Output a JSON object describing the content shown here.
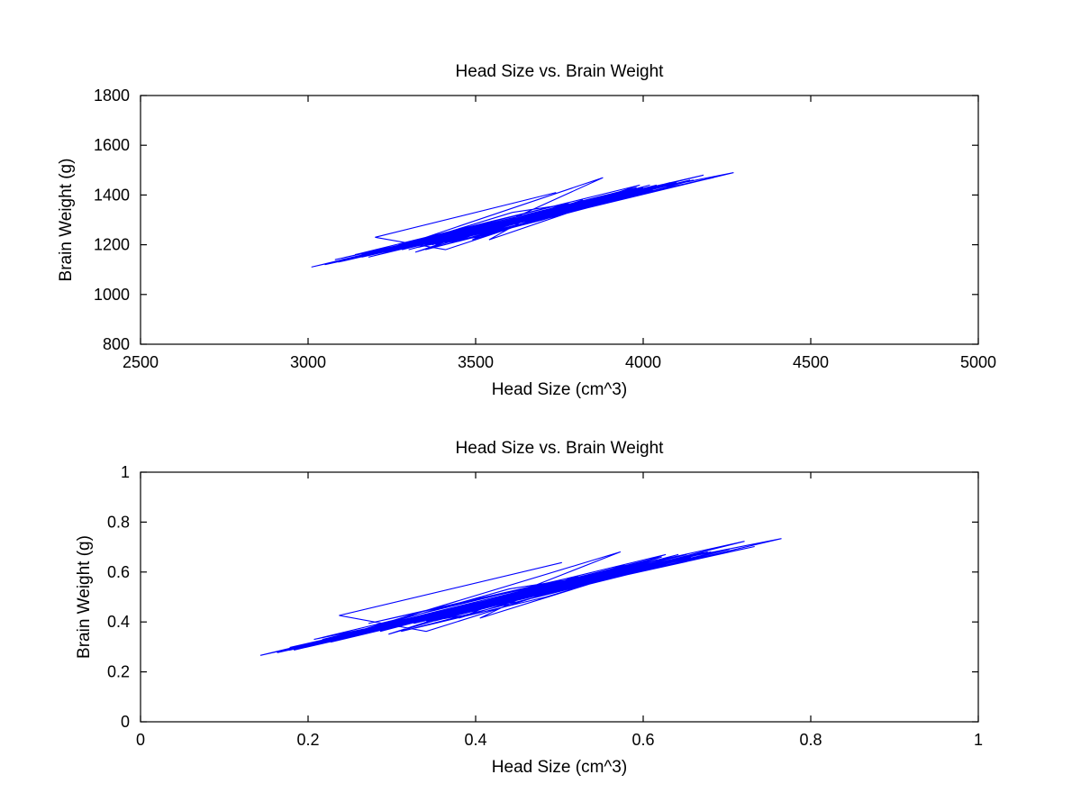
{
  "chart_data": [
    {
      "type": "line",
      "title": "Head Size vs. Brain Weight",
      "xlabel": "Head Size (cm^3)",
      "ylabel": "Brain Weight (g)",
      "xlim": [
        2500,
        5000
      ],
      "ylim": [
        800,
        1800
      ],
      "xticks": [
        2500,
        3000,
        3500,
        4000,
        4500,
        5000
      ],
      "yticks": [
        800,
        1000,
        1200,
        1400,
        1600,
        1800
      ],
      "xtick_labels": [
        "2500",
        "3000",
        "3500",
        "4000",
        "4500",
        "5000"
      ],
      "ytick_labels": [
        "800",
        "1000",
        "1200",
        "1400",
        "1600",
        "1800"
      ],
      "grid": false,
      "color": "#0000ff",
      "series": [
        {
          "x": [
            3740,
            3200,
            3410,
            3860,
            3610,
            3220,
            3880,
            3520,
            3660,
            3540,
            3910,
            3300,
            3780,
            3450,
            4030,
            3350,
            3700,
            3850,
            3140,
            3990,
            3490,
            3600,
            3780,
            3270,
            3930,
            3640,
            3080,
            4150,
            3500,
            3420,
            3820,
            3700,
            3890,
            3320,
            3560,
            4210,
            3160,
            3750,
            3460,
            3990,
            3090,
            3870,
            3380,
            3680,
            3980,
            3240,
            3590,
            3800,
            3480,
            4090,
            3310,
            3720,
            3950,
            3160,
            3560,
            3430,
            4070,
            3660,
            3250,
            3850,
            3540,
            4050,
            3330,
            3780,
            3470,
            3940,
            3120,
            3640,
            3900,
            3390,
            3810,
            3210,
            3700,
            4020,
            3570,
            3300,
            3880,
            3680,
            3050,
            3460,
            3920,
            4180,
            3630,
            3360,
            3750,
            3540,
            4100,
            3220,
            3690,
            3820,
            3410,
            3970,
            3600,
            3190,
            3780,
            4270,
            3500,
            3330,
            3860,
            3670,
            3010,
            3940,
            3580,
            3440,
            3760,
            4040,
            3260,
            3640,
            3820,
            3510,
            3910,
            3400,
            3720,
            3290,
            3990,
            3610,
            3180,
            3850,
            3560,
            3430,
            4140,
            3700,
            3340,
            3880,
            3530,
            3080,
            3790,
            3670,
            3960,
            3420,
            3600,
            3280,
            3840,
            3750,
            3480,
            4080,
            3360,
            3900,
            3620,
            3120,
            3780,
            3530,
            3980,
            3310,
            3710,
            3470,
            3880,
            3230,
            3650,
            3800,
            3400,
            3960,
            3570,
            3150,
            3740,
            3510,
            4060,
            3380,
            3690,
            3280,
            3830,
            3600,
            3450,
            3920,
            3210,
            3760,
            3550,
            4000,
            3350,
            3690,
            3880,
            3470,
            3100,
            3810,
            3640,
            3300,
            3940,
            3530,
            3760,
            3400,
            3850,
            3620,
            3190,
            4030,
            3490,
            3720,
            3270,
            3880,
            3580,
            3430,
            3810,
            3660,
            3340,
            3990,
            3500,
            3750,
            3210,
            3640,
            3910,
            3470,
            3780,
            3390,
            3590,
            3860,
            3250,
            3700,
            3530,
            4020,
            3370,
            3690,
            3420,
            3830,
            3610,
            3290,
            3750,
            3480,
            3920,
            3560,
            3330,
            3800,
            3650,
            3190,
            3740,
            3500,
            3890,
            3440,
            3670,
            3310,
            3820,
            3590,
            3720,
            3410,
            3960,
            3530,
            3270
          ],
          "y": [
            1410,
            1230,
            1180,
            1380,
            1330,
            1170,
            1470,
            1250,
            1310,
            1220,
            1390,
            1190,
            1350,
            1240,
            1420,
            1180,
            1300,
            1360,
            1160,
            1440,
            1220,
            1290,
            1370,
            1200,
            1410,
            1310,
            1140,
            1460,
            1230,
            1210,
            1380,
            1320,
            1400,
            1170,
            1280,
            1470,
            1150,
            1340,
            1230,
            1410,
            1130,
            1390,
            1200,
            1310,
            1430,
            1170,
            1280,
            1370,
            1240,
            1450,
            1190,
            1320,
            1420,
            1160,
            1270,
            1210,
            1440,
            1300,
            1180,
            1380,
            1260,
            1430,
            1200,
            1350,
            1230,
            1410,
            1140,
            1300,
            1390,
            1210,
            1360,
            1170,
            1330,
            1440,
            1280,
            1180,
            1390,
            1310,
            1120,
            1240,
            1400,
            1480,
            1300,
            1200,
            1350,
            1260,
            1450,
            1170,
            1320,
            1370,
            1210,
            1420,
            1290,
            1160,
            1360,
            1490,
            1240,
            1190,
            1380,
            1310,
            1110,
            1410,
            1270,
            1220,
            1340,
            1440,
            1180,
            1300,
            1370,
            1250,
            1400,
            1210,
            1330,
            1190,
            1420,
            1290,
            1150,
            1380,
            1270,
            1220,
            1460,
            1320,
            1200,
            1390,
            1260,
            1130,
            1350,
            1310,
            1410,
            1220,
            1290,
            1180,
            1370,
            1340,
            1240,
            1450,
            1200,
            1400,
            1300,
            1140,
            1350,
            1260,
            1430,
            1190,
            1330,
            1230,
            1380,
            1170,
            1310,
            1360,
            1220,
            1410,
            1280,
            1150,
            1340,
            1250,
            1440,
            1210,
            1320,
            1180,
            1370,
            1290,
            1230,
            1400,
            1170,
            1350,
            1270,
            1430,
            1200,
            1310,
            1380,
            1240,
            1140,
            1360,
            1300,
            1190,
            1410,
            1260,
            1340,
            1220,
            1370,
            1290,
            1160,
            1430,
            1240,
            1330,
            1180,
            1390,
            1270,
            1220,
            1360,
            1310,
            1200,
            1420,
            1250,
            1340,
            1170,
            1300,
            1400,
            1230,
            1350,
            1210,
            1280,
            1380,
            1180,
            1320,
            1260,
            1440,
            1200,
            1310,
            1220,
            1370,
            1290,
            1190,
            1340,
            1240,
            1400,
            1270,
            1200,
            1360,
            1310,
            1160,
            1340,
            1250,
            1390,
            1220,
            1310,
            1190,
            1370,
            1280,
            1330,
            1210,
            1410,
            1260,
            1180
          ]
        }
      ]
    },
    {
      "type": "line",
      "title": "Head Size vs. Brain Weight",
      "xlabel": "Head Size (cm^3)",
      "ylabel": "Brain Weight (g)",
      "xlim": [
        0,
        1
      ],
      "ylim": [
        0,
        1
      ],
      "xticks": [
        0,
        0.2,
        0.4,
        0.6,
        0.8,
        1
      ],
      "yticks": [
        0,
        0.2,
        0.4,
        0.6,
        0.8,
        1
      ],
      "xtick_labels": [
        "0",
        "0.2",
        "0.4",
        "0.6",
        "0.8",
        "1"
      ],
      "ytick_labels": [
        "0",
        "0.2",
        "0.4",
        "0.6",
        "0.8",
        "1"
      ],
      "grid": false,
      "color": "#0000ff",
      "series": [
        {
          "x": [
            0.503,
            0.237,
            0.341,
            0.563,
            0.44,
            0.247,
            0.573,
            0.395,
            0.464,
            0.405,
            0.588,
            0.286,
            0.523,
            0.36,
            0.647,
            0.311,
            0.484,
            0.558,
            0.207,
            0.627,
            0.38,
            0.435,
            0.523,
            0.272,
            0.603,
            0.459,
            0.178,
            0.703,
            0.385,
            0.346,
            0.543,
            0.484,
            0.578,
            0.296,
            0.415,
            0.733,
            0.217,
            0.508,
            0.365,
            0.627,
            0.183,
            0.568,
            0.326,
            0.474,
            0.622,
            0.257,
            0.43,
            0.533,
            0.375,
            0.677,
            0.291,
            0.494,
            0.607,
            0.217,
            0.415,
            0.351,
            0.667,
            0.464,
            0.262,
            0.558,
            0.405,
            0.657,
            0.301,
            0.523,
            0.37,
            0.598,
            0.197,
            0.459,
            0.588,
            0.336,
            0.538,
            0.242,
            0.484,
            0.642,
            0.42,
            0.286,
            0.573,
            0.474,
            0.163,
            0.365,
            0.593,
            0.721,
            0.454,
            0.321,
            0.508,
            0.405,
            0.681,
            0.247,
            0.479,
            0.543,
            0.341,
            0.617,
            0.435,
            0.232,
            0.523,
            0.765,
            0.385,
            0.301,
            0.563,
            0.469,
            0.143,
            0.603,
            0.425,
            0.356,
            0.513,
            0.652,
            0.267,
            0.459,
            0.543,
            0.39,
            0.588,
            0.336,
            0.494,
            0.281,
            0.627,
            0.44,
            0.227,
            0.558,
            0.415,
            0.351,
            0.701,
            0.484,
            0.306,
            0.573,
            0.4,
            0.178,
            0.528,
            0.469,
            0.612,
            0.346,
            0.435,
            0.276,
            0.553,
            0.508,
            0.375,
            0.672,
            0.316,
            0.583,
            0.445,
            0.197,
            0.523,
            0.4,
            0.622,
            0.291,
            0.489,
            0.37,
            0.573,
            0.252,
            0.464,
            0.538,
            0.336,
            0.612,
            0.42,
            0.212,
            0.503,
            0.39,
            0.662,
            0.326,
            0.479,
            0.276,
            0.548,
            0.435,
            0.36,
            0.593,
            0.242,
            0.513,
            0.41,
            0.632,
            0.311,
            0.479,
            0.573,
            0.37,
            0.188,
            0.538,
            0.459,
            0.286,
            0.603,
            0.4,
            0.513,
            0.336,
            0.558,
            0.445,
            0.232,
            0.647,
            0.38,
            0.494,
            0.272,
            0.573,
            0.425,
            0.351,
            0.538,
            0.469,
            0.306,
            0.627,
            0.385,
            0.508,
            0.242,
            0.459,
            0.588,
            0.37,
            0.523,
            0.331,
            0.43,
            0.563,
            0.262,
            0.484,
            0.4,
            0.642,
            0.321,
            0.479,
            0.346,
            0.548,
            0.44,
            0.281,
            0.508,
            0.375,
            0.593,
            0.415,
            0.301,
            0.533,
            0.464,
            0.232,
            0.503,
            0.385,
            0.578,
            0.356,
            0.469,
            0.291,
            0.543,
            0.43,
            0.494,
            0.341,
            0.612,
            0.4,
            0.272
          ],
          "y": [
            0.638,
            0.426,
            0.362,
            0.596,
            0.532,
            0.351,
            0.681,
            0.447,
            0.511,
            0.415,
            0.606,
            0.383,
            0.564,
            0.436,
            0.649,
            0.362,
            0.5,
            0.574,
            0.33,
            0.67,
            0.415,
            0.489,
            0.585,
            0.394,
            0.638,
            0.511,
            0.298,
            0.691,
            0.426,
            0.404,
            0.596,
            0.521,
            0.628,
            0.351,
            0.479,
            0.702,
            0.319,
            0.553,
            0.426,
            0.638,
            0.287,
            0.606,
            0.394,
            0.511,
            0.66,
            0.351,
            0.479,
            0.585,
            0.436,
            0.681,
            0.383,
            0.521,
            0.649,
            0.33,
            0.468,
            0.404,
            0.67,
            0.5,
            0.362,
            0.596,
            0.457,
            0.66,
            0.394,
            0.564,
            0.426,
            0.638,
            0.298,
            0.5,
            0.617,
            0.404,
            0.574,
            0.351,
            0.532,
            0.67,
            0.479,
            0.362,
            0.617,
            0.511,
            0.277,
            0.436,
            0.628,
            0.723,
            0.5,
            0.394,
            0.564,
            0.457,
            0.681,
            0.351,
            0.521,
            0.585,
            0.404,
            0.649,
            0.489,
            0.33,
            0.574,
            0.734,
            0.436,
            0.383,
            0.596,
            0.511,
            0.266,
            0.638,
            0.468,
            0.415,
            0.553,
            0.67,
            0.362,
            0.5,
            0.585,
            0.447,
            0.628,
            0.404,
            0.532,
            0.383,
            0.649,
            0.489,
            0.319,
            0.596,
            0.468,
            0.415,
            0.691,
            0.521,
            0.394,
            0.617,
            0.457,
            0.287,
            0.564,
            0.511,
            0.638,
            0.415,
            0.489,
            0.362,
            0.585,
            0.553,
            0.436,
            0.681,
            0.394,
            0.628,
            0.5,
            0.298,
            0.564,
            0.457,
            0.66,
            0.383,
            0.532,
            0.426,
            0.596,
            0.351,
            0.511,
            0.574,
            0.415,
            0.638,
            0.479,
            0.319,
            0.553,
            0.447,
            0.67,
            0.404,
            0.521,
            0.362,
            0.585,
            0.489,
            0.426,
            0.628,
            0.351,
            0.564,
            0.468,
            0.66,
            0.394,
            0.511,
            0.596,
            0.436,
            0.298,
            0.574,
            0.5,
            0.383,
            0.638,
            0.457,
            0.553,
            0.415,
            0.585,
            0.489,
            0.33,
            0.66,
            0.436,
            0.532,
            0.362,
            0.617,
            0.468,
            0.415,
            0.574,
            0.511,
            0.394,
            0.649,
            0.447,
            0.553,
            0.351,
            0.5,
            0.628,
            0.426,
            0.564,
            0.404,
            0.479,
            0.606,
            0.362,
            0.521,
            0.457,
            0.67,
            0.394,
            0.511,
            0.415,
            0.585,
            0.489,
            0.383,
            0.553,
            0.436,
            0.628,
            0.468,
            0.394,
            0.574,
            0.511,
            0.33,
            0.553,
            0.447,
            0.617,
            0.415,
            0.511,
            0.383,
            0.596,
            0.479,
            0.532,
            0.404,
            0.638,
            0.457,
            0.362
          ]
        }
      ]
    }
  ]
}
